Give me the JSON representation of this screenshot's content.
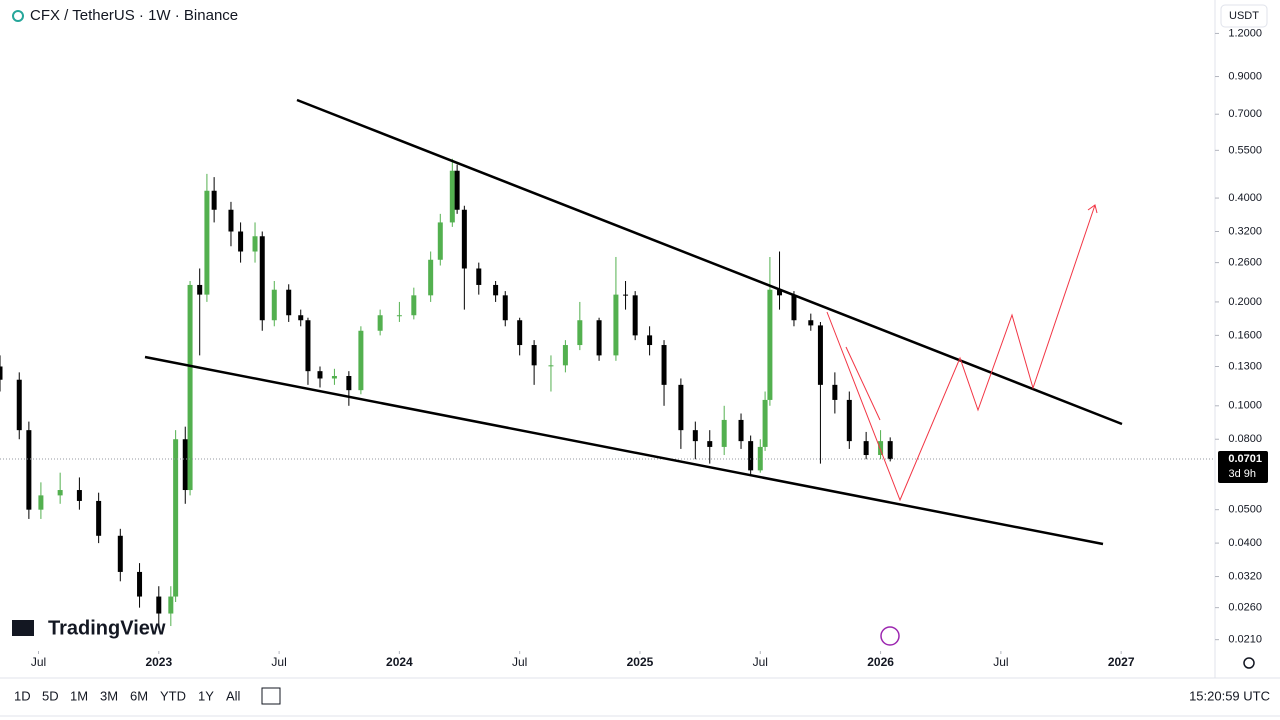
{
  "chart_data": {
    "type": "candlestick",
    "title": "CFX / TetherUS · 1W · Binance",
    "currency": "USDT",
    "countdown": "3d 9h",
    "log_scale": true,
    "up_color": "#53b04f",
    "down_color": "#000000",
    "x": [
      2022.34,
      2022.42,
      2022.46,
      2022.51,
      2022.59,
      2022.67,
      2022.75,
      2022.84,
      2022.92,
      2023.0,
      2023.05,
      2023.07,
      2023.11,
      2023.13,
      2023.17,
      2023.2,
      2023.23,
      2023.3,
      2023.34,
      2023.4,
      2023.43,
      2023.48,
      2023.54,
      2023.59,
      2023.62,
      2023.67,
      2023.73,
      2023.79,
      2023.84,
      2023.92,
      2024.0,
      2024.06,
      2024.13,
      2024.17,
      2024.22,
      2024.24,
      2024.27,
      2024.33,
      2024.4,
      2024.44,
      2024.5,
      2024.56,
      2024.63,
      2024.69,
      2024.75,
      2024.83,
      2024.9,
      2024.94,
      2024.98,
      2025.04,
      2025.1,
      2025.17,
      2025.23,
      2025.29,
      2025.35,
      2025.42,
      2025.46,
      2025.5,
      2025.52,
      2025.54,
      2025.58,
      2025.64,
      2025.71,
      2025.75,
      2025.81,
      2025.87,
      2025.94,
      2026.0,
      2026.04
    ],
    "open": [
      0.13,
      0.119,
      0.085,
      0.05,
      0.055,
      0.057,
      0.053,
      0.042,
      0.033,
      0.028,
      0.025,
      0.028,
      0.08,
      0.057,
      0.224,
      0.21,
      0.42,
      0.37,
      0.32,
      0.28,
      0.31,
      0.177,
      0.217,
      0.183,
      0.177,
      0.126,
      0.12,
      0.122,
      0.111,
      0.165,
      0.183,
      0.183,
      0.209,
      0.265,
      0.34,
      0.48,
      0.37,
      0.25,
      0.224,
      0.209,
      0.177,
      0.15,
      0.131,
      0.131,
      0.15,
      0.177,
      0.14,
      0.21,
      0.209,
      0.16,
      0.15,
      0.115,
      0.085,
      0.079,
      0.076,
      0.091,
      0.079,
      0.065,
      0.076,
      0.104,
      0.217,
      0.209,
      0.177,
      0.171,
      0.115,
      0.104,
      0.079,
      0.072,
      0.079
    ],
    "high": [
      0.14,
      0.125,
      0.09,
      0.06,
      0.064,
      0.062,
      0.056,
      0.044,
      0.035,
      0.03,
      0.03,
      0.085,
      0.087,
      0.23,
      0.25,
      0.47,
      0.46,
      0.39,
      0.34,
      0.34,
      0.32,
      0.23,
      0.225,
      0.19,
      0.18,
      0.13,
      0.128,
      0.126,
      0.17,
      0.19,
      0.2,
      0.22,
      0.28,
      0.36,
      0.52,
      0.5,
      0.38,
      0.26,
      0.23,
      0.215,
      0.18,
      0.155,
      0.14,
      0.155,
      0.2,
      0.18,
      0.27,
      0.23,
      0.215,
      0.17,
      0.155,
      0.12,
      0.09,
      0.085,
      0.1,
      0.095,
      0.082,
      0.08,
      0.11,
      0.27,
      0.28,
      0.215,
      0.185,
      0.175,
      0.125,
      0.11,
      0.084,
      0.085,
      0.081
    ],
    "low": [
      0.11,
      0.08,
      0.047,
      0.047,
      0.052,
      0.05,
      0.04,
      0.031,
      0.026,
      0.023,
      0.023,
      0.027,
      0.052,
      0.055,
      0.14,
      0.2,
      0.34,
      0.29,
      0.26,
      0.26,
      0.165,
      0.17,
      0.175,
      0.17,
      0.115,
      0.113,
      0.115,
      0.1,
      0.108,
      0.16,
      0.175,
      0.178,
      0.2,
      0.255,
      0.33,
      0.36,
      0.19,
      0.21,
      0.2,
      0.17,
      0.14,
      0.115,
      0.11,
      0.125,
      0.145,
      0.135,
      0.135,
      0.19,
      0.155,
      0.14,
      0.1,
      0.075,
      0.07,
      0.068,
      0.072,
      0.075,
      0.063,
      0.064,
      0.074,
      0.1,
      0.19,
      0.17,
      0.165,
      0.068,
      0.095,
      0.075,
      0.07,
      0.07,
      0.069
    ],
    "close": [
      0.119,
      0.085,
      0.05,
      0.055,
      0.057,
      0.053,
      0.042,
      0.033,
      0.028,
      0.025,
      0.028,
      0.08,
      0.057,
      0.224,
      0.21,
      0.42,
      0.37,
      0.32,
      0.28,
      0.31,
      0.177,
      0.217,
      0.183,
      0.177,
      0.126,
      0.12,
      0.122,
      0.111,
      0.165,
      0.183,
      0.183,
      0.209,
      0.265,
      0.34,
      0.48,
      0.37,
      0.25,
      0.224,
      0.209,
      0.177,
      0.15,
      0.131,
      0.131,
      0.15,
      0.177,
      0.14,
      0.21,
      0.209,
      0.16,
      0.15,
      0.115,
      0.085,
      0.079,
      0.076,
      0.091,
      0.079,
      0.065,
      0.076,
      0.104,
      0.217,
      0.209,
      0.177,
      0.171,
      0.115,
      0.104,
      0.079,
      0.072,
      0.079,
      0.0701
    ],
    "last_price": {
      "value": 0.0701,
      "label": "0.0701"
    },
    "xlim": [
      2022.34,
      2027.39
    ],
    "xticks": [
      {
        "value": 2022.5,
        "label": "Jul"
      },
      2023,
      {
        "value": 2023.5,
        "label": "Jul"
      },
      2024,
      {
        "value": 2024.5,
        "label": "Jul"
      },
      2025,
      {
        "value": 2025.5,
        "label": "Jul"
      },
      2026,
      {
        "value": 2026.5,
        "label": "Jul"
      },
      2027
    ],
    "ylim": [
      0.0196,
      1.5
    ],
    "yticks": [
      {
        "value": 1.2,
        "label": "1.2000"
      },
      {
        "value": 0.9,
        "label": "0.9000"
      },
      {
        "value": 0.7,
        "label": "0.7000"
      },
      {
        "value": 0.55,
        "label": "0.5500"
      },
      {
        "value": 0.4,
        "label": "0.4000"
      },
      {
        "value": 0.32,
        "label": "0.3200"
      },
      {
        "value": 0.26,
        "label": "0.2600"
      },
      {
        "value": 0.2,
        "label": "0.2000"
      },
      {
        "value": 0.16,
        "label": "0.1600"
      },
      {
        "value": 0.13,
        "label": "0.1300"
      },
      {
        "value": 0.1,
        "label": "0.1000"
      },
      {
        "value": 0.08,
        "label": "0.0800"
      },
      {
        "value": 0.05,
        "label": "0.0500"
      },
      {
        "value": 0.04,
        "label": "0.0400"
      },
      {
        "value": 0.032,
        "label": "0.0320"
      },
      {
        "value": 0.026,
        "label": "0.0260"
      },
      {
        "value": 0.021,
        "label": "0.0210"
      }
    ]
  },
  "ui": {
    "logo": "TradingView",
    "ranges": [
      "1D",
      "5D",
      "1M",
      "3M",
      "6M",
      "YTD",
      "1Y",
      "All"
    ],
    "clock": "15:20:59 UTC"
  }
}
